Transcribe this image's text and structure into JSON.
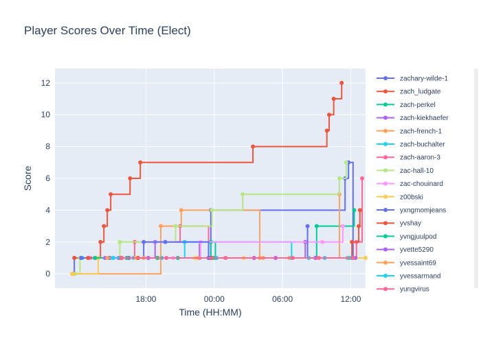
{
  "chart_data": {
    "type": "line",
    "line_shape": "step",
    "title": "Player Scores Over Time (Elect)",
    "xlabel": "Time (HH:MM)",
    "ylabel": "Score",
    "x_range_hours": [
      10.0,
      37.3
    ],
    "ylim": [
      -0.9,
      12.9
    ],
    "x_ticks": [
      {
        "label": "18:00",
        "hours": 18
      },
      {
        "label": "00:00",
        "hours": 24
      },
      {
        "label": "06:00",
        "hours": 30
      },
      {
        "label": "12:00",
        "hours": 36
      }
    ],
    "y_ticks": [
      0,
      2,
      4,
      6,
      8,
      10,
      12
    ],
    "grid": true,
    "legend_position": "right",
    "series": [
      {
        "name": "zachary-wilde-1",
        "color": "#636efa",
        "x": [
          11.6,
          11.7,
          23.6,
          23.7,
          35.5,
          35.8,
          36.2
        ],
        "y": [
          0,
          1,
          1,
          4,
          6,
          7,
          1
        ]
      },
      {
        "name": "zach_ludgate",
        "color": "#ef553b",
        "x": [
          11.7,
          14.0,
          14.3,
          14.6,
          14.9,
          16.6,
          17.5,
          27.4,
          33.9,
          34.1,
          34.5,
          35.2
        ],
        "y": [
          1,
          2,
          3,
          4,
          5,
          6,
          7,
          8,
          9,
          10,
          11,
          12
        ]
      },
      {
        "name": "zach-perkel",
        "color": "#00cc96",
        "x": [
          12.2,
          19.0,
          20.8,
          23.7,
          24.1,
          33.0,
          36.3
        ],
        "y": [
          1,
          1,
          1,
          2,
          1,
          3,
          4
        ]
      },
      {
        "name": "zach-kiekhaefer",
        "color": "#ab63fa",
        "x": [
          13.1,
          15.6,
          18.8,
          22.7,
          29.4,
          32.0
        ],
        "y": [
          1,
          1,
          2,
          1,
          1,
          2
        ]
      },
      {
        "name": "zach-french-1",
        "color": "#ffa15a",
        "x": [
          11.6,
          19.3,
          21.1,
          28.0,
          30.6,
          35.0
        ],
        "y": [
          0,
          3,
          4,
          1,
          1,
          5
        ]
      },
      {
        "name": "zach-buchalter",
        "color": "#19d3f3",
        "x": [
          12.4,
          16.9,
          21.4,
          30.8,
          33.7,
          35.7
        ],
        "y": [
          1,
          1,
          2,
          1,
          1,
          1
        ]
      },
      {
        "name": "zach-aaron-3",
        "color": "#ff6692",
        "x": [
          13.6,
          17.0,
          21.0,
          23.5,
          30.9,
          36.5,
          37.0
        ],
        "y": [
          1,
          2,
          3,
          1,
          1,
          2,
          6
        ]
      },
      {
        "name": "zac-hall-10",
        "color": "#b6e880",
        "x": [
          11.8,
          12.2,
          15.7,
          20.6,
          23.8,
          26.5,
          35.0,
          35.6
        ],
        "y": [
          0,
          1,
          2,
          3,
          4,
          5,
          6,
          7
        ]
      },
      {
        "name": "zac-chouinard",
        "color": "#ff97ff",
        "x": [
          13.0,
          15.2,
          18.2,
          20.4,
          22.8,
          33.5,
          35.3
        ],
        "y": [
          1,
          1,
          1,
          1,
          2,
          2,
          3
        ]
      },
      {
        "name": "z00bski",
        "color": "#fecb52",
        "x": [
          11.5,
          13.8,
          17.1,
          19.1,
          22.3,
          26.6,
          37.3
        ],
        "y": [
          0,
          1,
          1,
          1,
          1,
          1,
          1
        ]
      },
      {
        "name": "yxngmomjeans",
        "color": "#636efa",
        "x": [
          12.3,
          14.8,
          16.5,
          17.8,
          19.7,
          23.5,
          32.2
        ],
        "y": [
          1,
          1,
          1,
          2,
          2,
          1,
          3
        ]
      },
      {
        "name": "yvshay",
        "color": "#ef553b",
        "x": [
          12.9,
          15.8,
          17.3,
          23.8,
          32.9,
          36.1,
          36.7,
          36.8
        ],
        "y": [
          1,
          1,
          1,
          1,
          1,
          2,
          3,
          4
        ]
      },
      {
        "name": "yvngjuulpod",
        "color": "#00cc96",
        "x": [
          13.5,
          16.3,
          19.0,
          24.0,
          36.1
        ],
        "y": [
          1,
          1,
          1,
          1,
          1
        ]
      },
      {
        "name": "yvette5290",
        "color": "#ab63fa",
        "x": [
          14.4,
          18.2,
          27.5,
          32.9,
          36.4
        ],
        "y": [
          1,
          1,
          1,
          1,
          1
        ]
      },
      {
        "name": "yvessaint69",
        "color": "#ffa15a",
        "x": [
          14.6,
          17.8,
          22.6,
          28.3,
          35.8
        ],
        "y": [
          1,
          1,
          1,
          1,
          1
        ]
      },
      {
        "name": "yvessarmand",
        "color": "#19d3f3",
        "x": [
          15.1,
          19.4,
          24.2,
          32.3,
          35.9
        ],
        "y": [
          1,
          1,
          1,
          1,
          1
        ]
      },
      {
        "name": "yungvirus",
        "color": "#ff6692",
        "x": [
          15.9,
          19.8,
          25.0,
          33.2,
          36.2
        ],
        "y": [
          1,
          1,
          1,
          1,
          1
        ]
      }
    ]
  }
}
